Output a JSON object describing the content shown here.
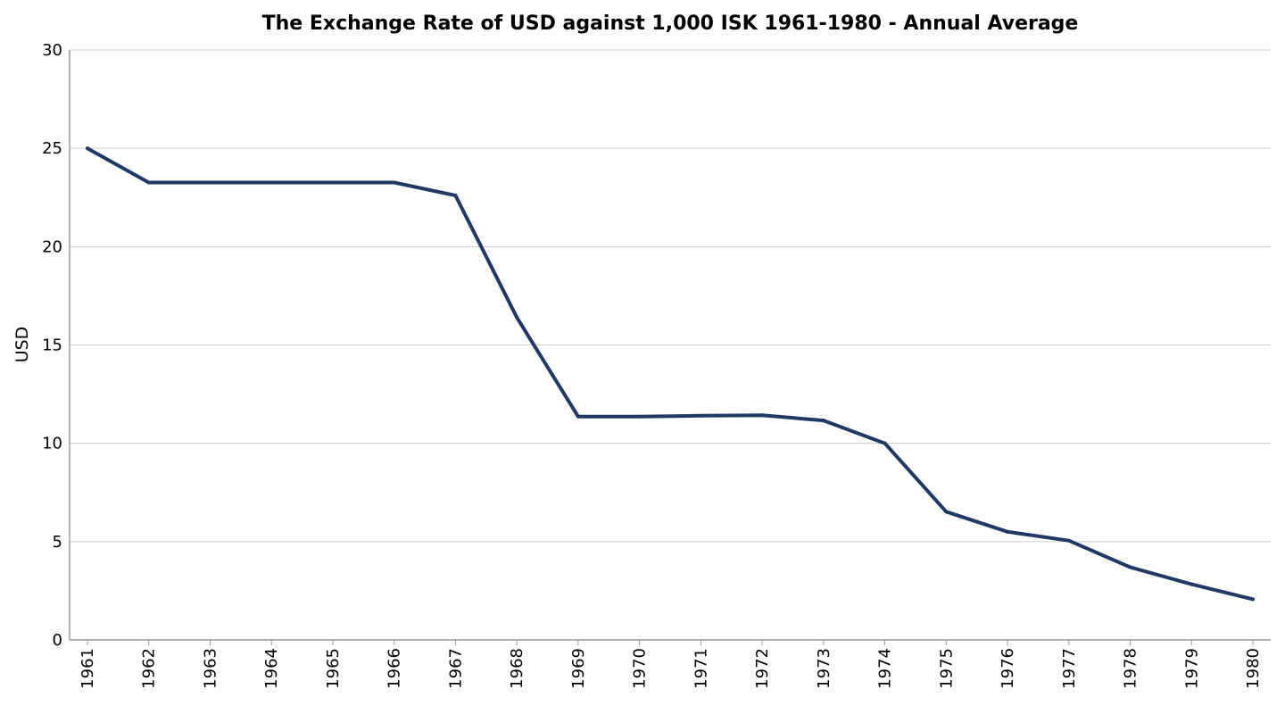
{
  "chart_data": {
    "type": "line",
    "title": "The Exchange Rate of USD against 1,000 ISK 1961-1980 - Annual Average",
    "xlabel": "",
    "ylabel": "USD",
    "ylim": [
      0,
      30
    ],
    "yticks": [
      0,
      5,
      10,
      15,
      20,
      25,
      30
    ],
    "grid": true,
    "legend": "none",
    "categories": [
      "1961",
      "1962",
      "1963",
      "1964",
      "1965",
      "1966",
      "1967",
      "1968",
      "1969",
      "1970",
      "1971",
      "1972",
      "1973",
      "1974",
      "1975",
      "1976",
      "1977",
      "1978",
      "1979",
      "1980"
    ],
    "series": [
      {
        "values": [
          25.0,
          23.26,
          23.26,
          23.26,
          23.26,
          23.26,
          22.6,
          16.4,
          11.36,
          11.36,
          11.4,
          11.43,
          11.16,
          10.0,
          6.52,
          5.5,
          5.05,
          3.7,
          2.83,
          2.07
        ]
      }
    ],
    "colors": {
      "line": "#1f3864",
      "grid": "#cccccc",
      "axis": "#999999"
    }
  }
}
